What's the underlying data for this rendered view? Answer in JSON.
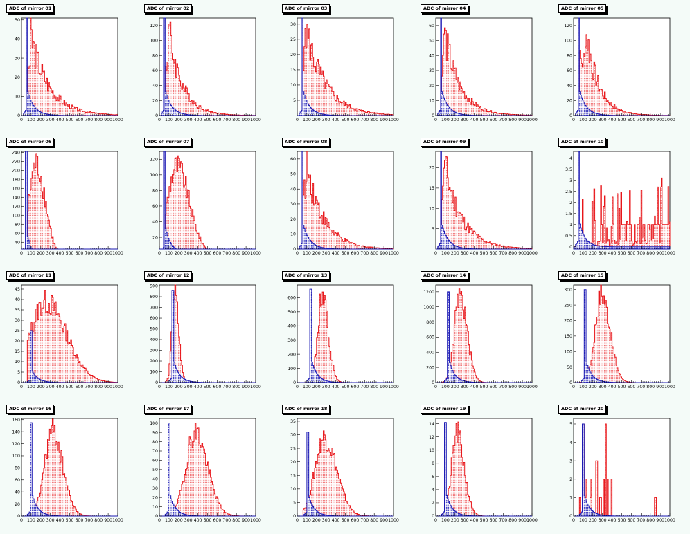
{
  "colors": {
    "adc": "#e8161a",
    "pedestal": "#1c1ab4",
    "frame_bg": "#ffffff",
    "page_bg": "#f4fbf8"
  },
  "x_ticks": [
    "0",
    "100",
    "200",
    "300",
    "400",
    "500",
    "600",
    "700",
    "800",
    "900",
    "1000"
  ],
  "chart_data": [
    {
      "type": "bar",
      "title": "ADC of mirror 01",
      "xlim": [
        0,
        1000
      ],
      "ylim": [
        0,
        51
      ],
      "y_ticks": [
        0,
        10,
        20,
        30,
        40,
        50
      ],
      "shape": "decay",
      "series": [
        {
          "kind": "adc",
          "peak_x": 90,
          "peak_y": 45,
          "tail": 190
        },
        {
          "kind": "pedestal",
          "peak_x": 55,
          "peak_y": 51
        }
      ]
    },
    {
      "type": "bar",
      "title": "ADC of mirror 02",
      "xlim": [
        0,
        1000
      ],
      "ylim": [
        0,
        130
      ],
      "y_ticks": [
        0,
        20,
        40,
        60,
        80,
        100,
        120
      ],
      "shape": "decay",
      "series": [
        {
          "kind": "adc",
          "peak_x": 90,
          "peak_y": 125,
          "tail": 140
        },
        {
          "kind": "pedestal",
          "peak_x": 55,
          "peak_y": 130
        }
      ]
    },
    {
      "type": "bar",
      "title": "ADC of mirror 03",
      "xlim": [
        0,
        1000
      ],
      "ylim": [
        0,
        32
      ],
      "y_ticks": [
        5,
        10,
        15,
        20,
        25,
        30
      ],
      "shape": "decay",
      "series": [
        {
          "kind": "adc",
          "peak_x": 80,
          "peak_y": 31,
          "tail": 200
        },
        {
          "kind": "pedestal",
          "peak_x": 55,
          "peak_y": 32
        }
      ]
    },
    {
      "type": "bar",
      "title": "ADC of mirror 04",
      "xlim": [
        0,
        1000
      ],
      "ylim": [
        0,
        65
      ],
      "y_ticks": [
        0,
        10,
        20,
        30,
        40,
        50,
        60
      ],
      "shape": "decay",
      "series": [
        {
          "kind": "adc",
          "peak_x": 80,
          "peak_y": 60,
          "tail": 160
        },
        {
          "kind": "pedestal",
          "peak_x": 55,
          "peak_y": 65
        }
      ]
    },
    {
      "type": "bar",
      "title": "ADC of mirror 05",
      "xlim": [
        0,
        1000
      ],
      "ylim": [
        0,
        130
      ],
      "y_ticks": [
        0,
        20,
        40,
        60,
        80,
        100,
        120
      ],
      "shape": "decay",
      "series": [
        {
          "kind": "adc",
          "peak_x": 120,
          "peak_y": 125,
          "tail": 130
        },
        {
          "kind": "pedestal",
          "peak_x": 55,
          "peak_y": 130
        }
      ]
    },
    {
      "type": "bar",
      "title": "ADC of mirror 06",
      "xlim": [
        0,
        1000
      ],
      "ylim": [
        25,
        242
      ],
      "y_ticks": [
        40,
        60,
        80,
        100,
        120,
        140,
        160,
        180,
        200,
        220,
        240
      ],
      "shape": "gauss",
      "series": [
        {
          "kind": "adc",
          "peak_x": 150,
          "peak_y": 220,
          "sigma": 75
        },
        {
          "kind": "pedestal",
          "peak_x": 50,
          "peak_y": 242
        }
      ]
    },
    {
      "type": "bar",
      "title": "ADC of mirror 07",
      "xlim": [
        0,
        1000
      ],
      "ylim": [
        5,
        130
      ],
      "y_ticks": [
        20,
        40,
        60,
        80,
        100,
        120
      ],
      "shape": "gauss",
      "series": [
        {
          "kind": "adc",
          "peak_x": 180,
          "peak_y": 115,
          "sigma": 95
        },
        {
          "kind": "pedestal",
          "peak_x": 55,
          "peak_y": 130
        }
      ]
    },
    {
      "type": "bar",
      "title": "ADC of mirror 08",
      "xlim": [
        0,
        1000
      ],
      "ylim": [
        0,
        65
      ],
      "y_ticks": [
        0,
        10,
        20,
        30,
        40,
        50,
        60
      ],
      "shape": "decay",
      "series": [
        {
          "kind": "adc",
          "peak_x": 90,
          "peak_y": 63,
          "tail": 170
        },
        {
          "kind": "pedestal",
          "peak_x": 55,
          "peak_y": 65
        }
      ]
    },
    {
      "type": "bar",
      "title": "ADC of mirror 09",
      "xlim": [
        0,
        1000
      ],
      "ylim": [
        0,
        24
      ],
      "y_ticks": [
        5,
        10,
        15,
        20
      ],
      "shape": "decay",
      "series": [
        {
          "kind": "adc",
          "peak_x": 80,
          "peak_y": 23,
          "tail": 180
        },
        {
          "kind": "pedestal",
          "peak_x": 55,
          "peak_y": 24
        }
      ]
    },
    {
      "type": "bar",
      "title": "ADC of mirror 10",
      "xlim": [
        0,
        1000
      ],
      "ylim": [
        -0.1,
        4.3
      ],
      "y_ticks": [
        0,
        0.5,
        1,
        1.5,
        2,
        2.5,
        3,
        3.5,
        4
      ],
      "shape": "flat",
      "series": [
        {
          "kind": "adc",
          "peak_x": 100,
          "peak_y": 4.2
        },
        {
          "kind": "pedestal",
          "peak_x": 55,
          "peak_y": 4.3
        }
      ]
    },
    {
      "type": "bar",
      "title": "ADC of mirror 11",
      "xlim": [
        0,
        1000
      ],
      "ylim": [
        0,
        47
      ],
      "y_ticks": [
        0,
        5,
        10,
        15,
        20,
        25,
        30,
        35,
        40,
        45
      ],
      "shape": "gauss",
      "series": [
        {
          "kind": "adc",
          "peak_x": 250,
          "peak_y": 40,
          "sigma": 160
        },
        {
          "kind": "pedestal",
          "peak_x": 100,
          "peak_y": 25
        }
      ]
    },
    {
      "type": "bar",
      "title": "ADC of mirror 12",
      "xlim": [
        0,
        1000
      ],
      "ylim": [
        0,
        910
      ],
      "y_ticks": [
        0,
        100,
        200,
        300,
        400,
        500,
        600,
        700,
        800,
        900
      ],
      "shape": "gauss",
      "series": [
        {
          "kind": "adc",
          "peak_x": 160,
          "peak_y": 850,
          "sigma": 30
        },
        {
          "kind": "pedestal",
          "peak_x": 140,
          "peak_y": 860
        }
      ]
    },
    {
      "type": "bar",
      "title": "ADC of mirror 13",
      "xlim": [
        0,
        1000
      ],
      "ylim": [
        0,
        690
      ],
      "y_ticks": [
        0,
        100,
        200,
        300,
        400,
        500,
        600
      ],
      "shape": "gauss",
      "series": [
        {
          "kind": "adc",
          "peak_x": 260,
          "peak_y": 660,
          "sigma": 45
        },
        {
          "kind": "pedestal",
          "peak_x": 140,
          "peak_y": 660
        }
      ]
    },
    {
      "type": "bar",
      "title": "ADC of mirror 14",
      "xlim": [
        0,
        1000
      ],
      "ylim": [
        0,
        1290
      ],
      "y_ticks": [
        0,
        200,
        400,
        600,
        800,
        1000,
        1200
      ],
      "shape": "gauss",
      "series": [
        {
          "kind": "adc",
          "peak_x": 250,
          "peak_y": 1200,
          "sigma": 55
        },
        {
          "kind": "pedestal",
          "peak_x": 130,
          "peak_y": 1200
        }
      ]
    },
    {
      "type": "bar",
      "title": "ADC of mirror 15",
      "xlim": [
        0,
        1000
      ],
      "ylim": [
        0,
        315
      ],
      "y_ticks": [
        0,
        50,
        100,
        150,
        200,
        250,
        300
      ],
      "shape": "gauss",
      "series": [
        {
          "kind": "adc",
          "peak_x": 290,
          "peak_y": 295,
          "sigma": 65
        },
        {
          "kind": "pedestal",
          "peak_x": 120,
          "peak_y": 300
        }
      ]
    },
    {
      "type": "bar",
      "title": "ADC of mirror 16",
      "xlim": [
        0,
        1000
      ],
      "ylim": [
        0,
        162
      ],
      "y_ticks": [
        0,
        20,
        40,
        60,
        80,
        100,
        120,
        140,
        160
      ],
      "shape": "gauss",
      "series": [
        {
          "kind": "adc",
          "peak_x": 320,
          "peak_y": 145,
          "sigma": 80
        },
        {
          "kind": "pedestal",
          "peak_x": 100,
          "peak_y": 155
        }
      ]
    },
    {
      "type": "bar",
      "title": "ADC of mirror 17",
      "xlim": [
        0,
        1000
      ],
      "ylim": [
        0,
        105
      ],
      "y_ticks": [
        0,
        10,
        20,
        30,
        40,
        50,
        60,
        70,
        80,
        90,
        100
      ],
      "shape": "gauss",
      "series": [
        {
          "kind": "adc",
          "peak_x": 370,
          "peak_y": 93,
          "sigma": 95
        },
        {
          "kind": "pedestal",
          "peak_x": 100,
          "peak_y": 100
        }
      ]
    },
    {
      "type": "bar",
      "title": "ADC of mirror 18",
      "xlim": [
        0,
        1000
      ],
      "ylim": [
        0,
        36
      ],
      "y_ticks": [
        0,
        5,
        10,
        15,
        20,
        25,
        30,
        35
      ],
      "shape": "gauss",
      "series": [
        {
          "kind": "adc",
          "peak_x": 280,
          "peak_y": 30,
          "sigma": 95
        },
        {
          "kind": "pedestal",
          "peak_x": 110,
          "peak_y": 31
        }
      ]
    },
    {
      "type": "bar",
      "title": "ADC of mirror 19",
      "xlim": [
        0,
        1000
      ],
      "ylim": [
        0,
        14.8
      ],
      "y_ticks": [
        0,
        2,
        4,
        6,
        8,
        10,
        12,
        14
      ],
      "shape": "gauss",
      "series": [
        {
          "kind": "adc",
          "peak_x": 220,
          "peak_y": 13,
          "sigma": 55
        },
        {
          "kind": "pedestal",
          "peak_x": 100,
          "peak_y": 14.2
        }
      ]
    },
    {
      "type": "bar",
      "title": "ADC of mirror 20",
      "xlim": [
        0,
        1000
      ],
      "ylim": [
        0,
        5.3
      ],
      "y_ticks": [
        0,
        1,
        2,
        3,
        4,
        5
      ],
      "shape": "sparse",
      "series": [
        {
          "kind": "adc",
          "peak_x": 250,
          "peak_y": 5
        },
        {
          "kind": "pedestal",
          "peak_x": 100,
          "peak_y": 5
        }
      ]
    }
  ]
}
